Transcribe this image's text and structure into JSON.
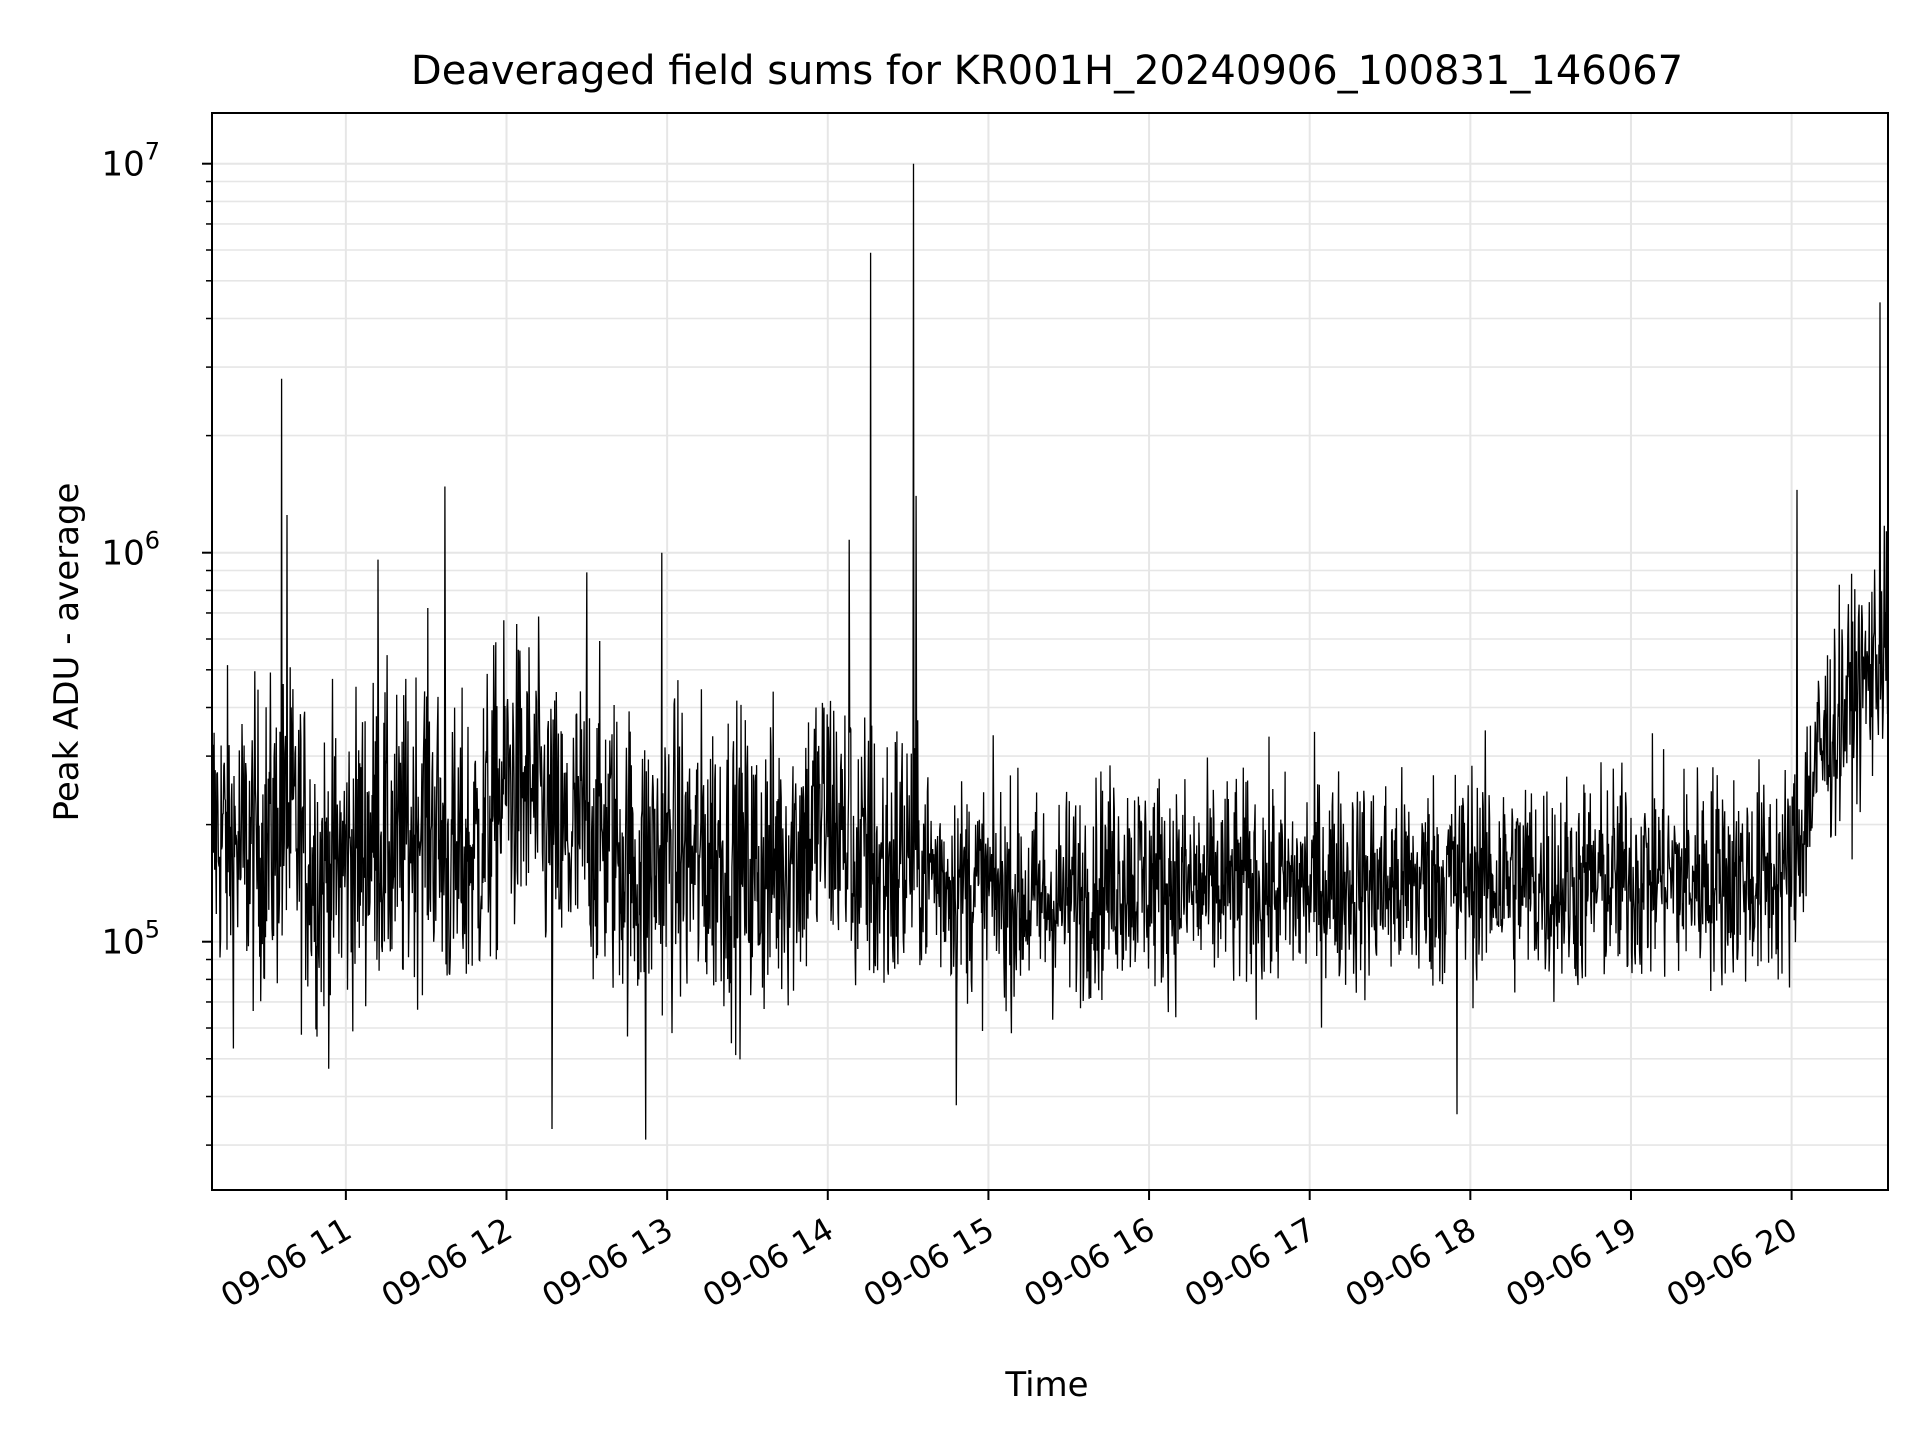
{
  "chart_data": {
    "type": "line",
    "title": "Deaveraged field sums for KR001H_20240906_100831_146067",
    "xlabel": "Time",
    "ylabel": "Peak ADU - average",
    "yscale": "log",
    "ylim": [
      23000,
      13500000
    ],
    "xlim": [
      "2024-09-06 10:10",
      "2024-09-06 20:36"
    ],
    "grid": true,
    "line_color": "#000000",
    "grid_color": "#e6e6e6",
    "x_ticks": [
      {
        "t": "2024-09-06 11:00",
        "label": "09-06 11"
      },
      {
        "t": "2024-09-06 12:00",
        "label": "09-06 12"
      },
      {
        "t": "2024-09-06 13:00",
        "label": "09-06 13"
      },
      {
        "t": "2024-09-06 14:00",
        "label": "09-06 14"
      },
      {
        "t": "2024-09-06 15:00",
        "label": "09-06 15"
      },
      {
        "t": "2024-09-06 16:00",
        "label": "09-06 16"
      },
      {
        "t": "2024-09-06 17:00",
        "label": "09-06 17"
      },
      {
        "t": "2024-09-06 18:00",
        "label": "09-06 18"
      },
      {
        "t": "2024-09-06 19:00",
        "label": "09-06 19"
      },
      {
        "t": "2024-09-06 20:00",
        "label": "09-06 20"
      }
    ],
    "y_ticks": [
      {
        "value": 100000,
        "base": "10",
        "exp": "5"
      },
      {
        "value": 1000000,
        "base": "10",
        "exp": "6"
      },
      {
        "value": 10000000,
        "base": "10",
        "exp": "7"
      }
    ],
    "series": [
      {
        "x": [
          "2024-09-06 10:10",
          "2024-09-06 10:20",
          "2024-09-06 10:30",
          "2024-09-06 10:40",
          "2024-09-06 10:50",
          "2024-09-06 11:00",
          "2024-09-06 11:10",
          "2024-09-06 11:20",
          "2024-09-06 11:30",
          "2024-09-06 11:40",
          "2024-09-06 11:50",
          "2024-09-06 12:00",
          "2024-09-06 12:10",
          "2024-09-06 12:20",
          "2024-09-06 12:30",
          "2024-09-06 12:40",
          "2024-09-06 12:50",
          "2024-09-06 13:00",
          "2024-09-06 13:10",
          "2024-09-06 13:20",
          "2024-09-06 13:30",
          "2024-09-06 13:40",
          "2024-09-06 13:50",
          "2024-09-06 14:00",
          "2024-09-06 14:10",
          "2024-09-06 14:20",
          "2024-09-06 14:30",
          "2024-09-06 14:40",
          "2024-09-06 14:50",
          "2024-09-06 15:00",
          "2024-09-06 15:10",
          "2024-09-06 15:20",
          "2024-09-06 15:30",
          "2024-09-06 15:40",
          "2024-09-06 15:50",
          "2024-09-06 16:00",
          "2024-09-06 16:10",
          "2024-09-06 16:20",
          "2024-09-06 16:30",
          "2024-09-06 16:40",
          "2024-09-06 16:50",
          "2024-09-06 17:00",
          "2024-09-06 17:10",
          "2024-09-06 17:20",
          "2024-09-06 17:30",
          "2024-09-06 17:40",
          "2024-09-06 17:50",
          "2024-09-06 18:00",
          "2024-09-06 18:10",
          "2024-09-06 18:20",
          "2024-09-06 18:30",
          "2024-09-06 18:40",
          "2024-09-06 18:50",
          "2024-09-06 19:00",
          "2024-09-06 19:10",
          "2024-09-06 19:20",
          "2024-09-06 19:30",
          "2024-09-06 19:40",
          "2024-09-06 19:50",
          "2024-09-06 20:00",
          "2024-09-06 20:10",
          "2024-09-06 20:20",
          "2024-09-06 20:30",
          "2024-09-06 20:36"
        ],
        "y": [
          200000,
          170000,
          180000,
          200000,
          150000,
          160000,
          190000,
          170000,
          230000,
          150000,
          180000,
          260000,
          240000,
          170000,
          200000,
          180000,
          150000,
          170000,
          160000,
          170000,
          150000,
          160000,
          180000,
          220000,
          160000,
          150000,
          170000,
          150000,
          140000,
          135000,
          130000,
          125000,
          130000,
          140000,
          150000,
          145000,
          140000,
          135000,
          140000,
          140000,
          135000,
          140000,
          145000,
          140000,
          140000,
          140000,
          145000,
          150000,
          145000,
          145000,
          140000,
          140000,
          145000,
          145000,
          150000,
          145000,
          150000,
          145000,
          145000,
          150000,
          300000,
          400000,
          500000,
          600000
        ],
        "spikes": [
          {
            "t": "2024-09-06 10:36",
            "y": 2800000
          },
          {
            "t": "2024-09-06 10:38",
            "y": 1250000
          },
          {
            "t": "2024-09-06 11:12",
            "y": 960000
          },
          {
            "t": "2024-09-06 11:37",
            "y": 1480000
          },
          {
            "t": "2024-09-06 12:30",
            "y": 890000
          },
          {
            "t": "2024-09-06 12:58",
            "y": 1000000
          },
          {
            "t": "2024-09-06 14:08",
            "y": 1080000
          },
          {
            "t": "2024-09-06 14:16",
            "y": 5900000
          },
          {
            "t": "2024-09-06 14:32",
            "y": 10000000
          },
          {
            "t": "2024-09-06 14:33",
            "y": 1400000
          },
          {
            "t": "2024-09-06 20:02",
            "y": 1450000
          },
          {
            "t": "2024-09-06 20:33",
            "y": 4400000
          }
        ],
        "dips": [
          {
            "t": "2024-09-06 12:17",
            "y": 33000
          },
          {
            "t": "2024-09-06 12:52",
            "y": 31000
          },
          {
            "t": "2024-09-06 14:48",
            "y": 38000
          },
          {
            "t": "2024-09-06 17:55",
            "y": 36000
          }
        ]
      }
    ]
  }
}
